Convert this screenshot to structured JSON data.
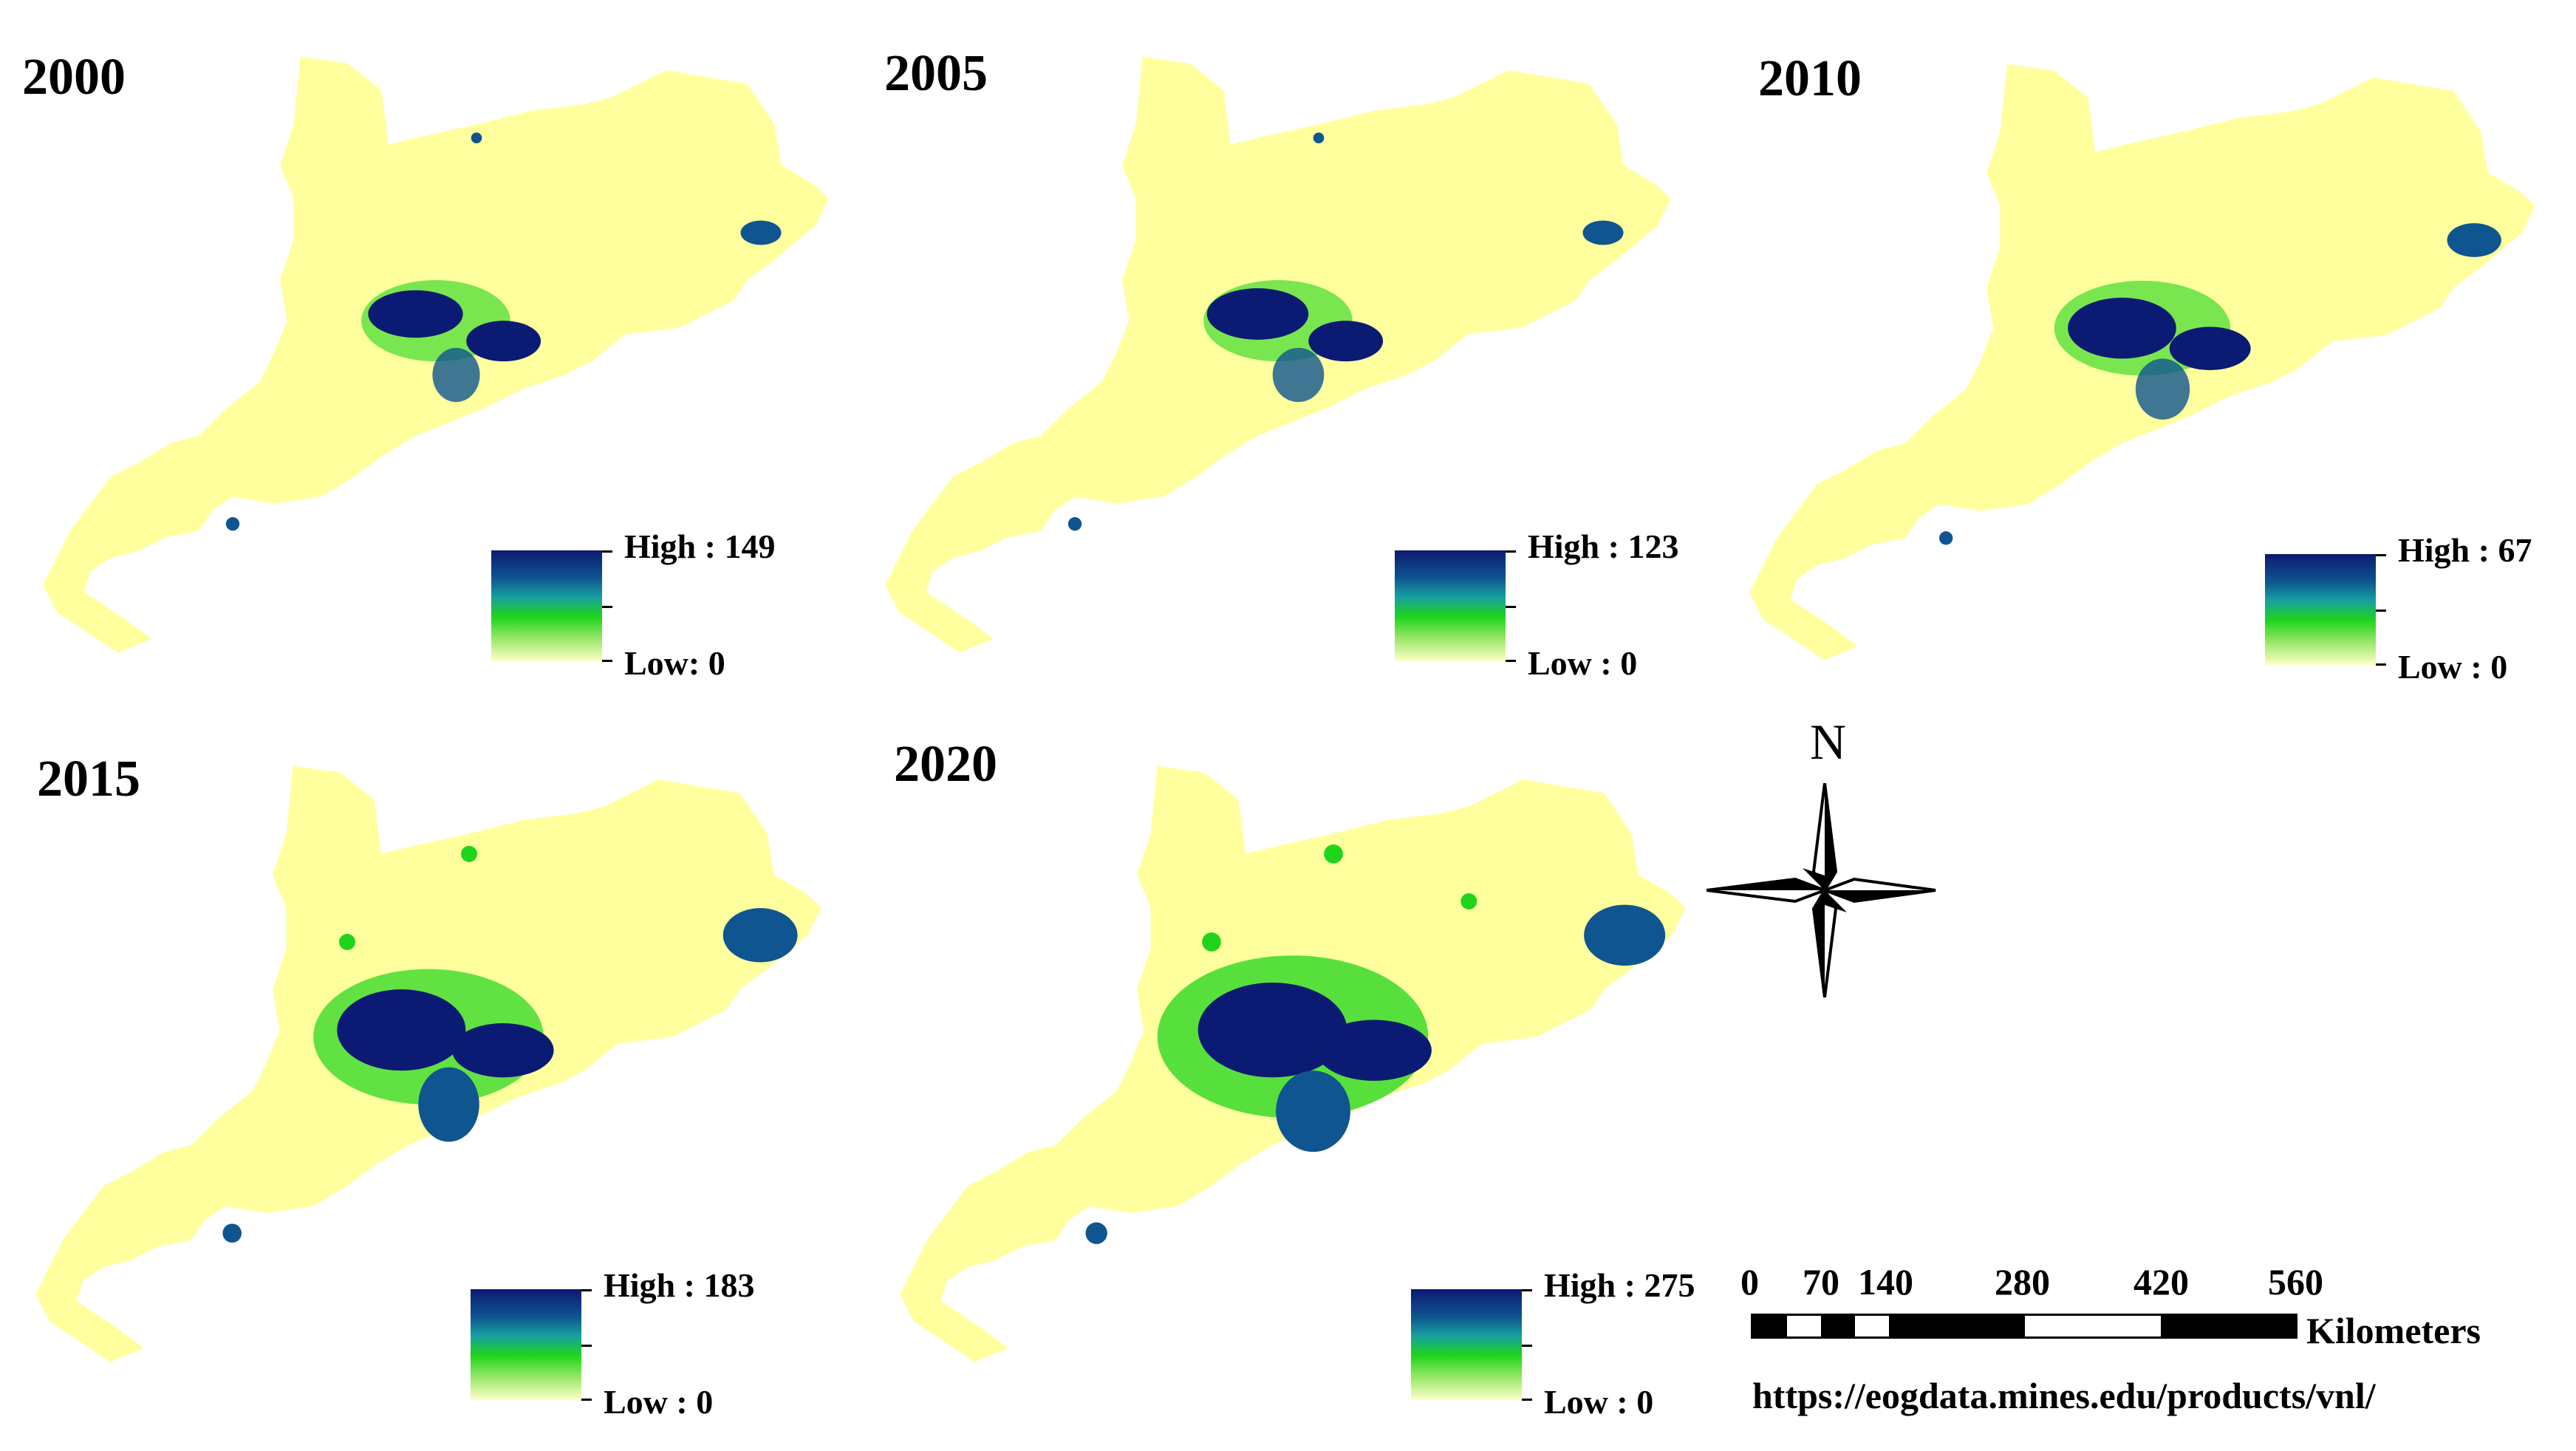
{
  "panels": [
    {
      "year": "2000",
      "high_label": "High : 149",
      "low_label": "Low:   0",
      "high": 149,
      "low": 0
    },
    {
      "year": "2005",
      "high_label": "High : 123",
      "low_label": "Low : 0",
      "high": 123,
      "low": 0
    },
    {
      "year": "2010",
      "high_label": "High : 67",
      "low_label": "Low : 0",
      "high": 67,
      "low": 0
    },
    {
      "year": "2015",
      "high_label": "High : 183",
      "low_label": "Low : 0",
      "high": 183,
      "low": 0
    },
    {
      "year": "2020",
      "high_label": "High : 275",
      "low_label": "Low : 0",
      "high": 275,
      "low": 0
    }
  ],
  "scale_bar": {
    "ticks": [
      "0",
      "70",
      "140",
      "280",
      "420",
      "560"
    ],
    "units": "Kilometers"
  },
  "north_arrow": {
    "label": "N",
    "icon": "north-arrow-compass-icon"
  },
  "source": "https://eogdata.mines.edu/products/vnl/",
  "colors": {
    "land": "#ffff9e",
    "low": "#ffffc8",
    "mid": "#1fd51b",
    "high": "#0b1a72"
  }
}
